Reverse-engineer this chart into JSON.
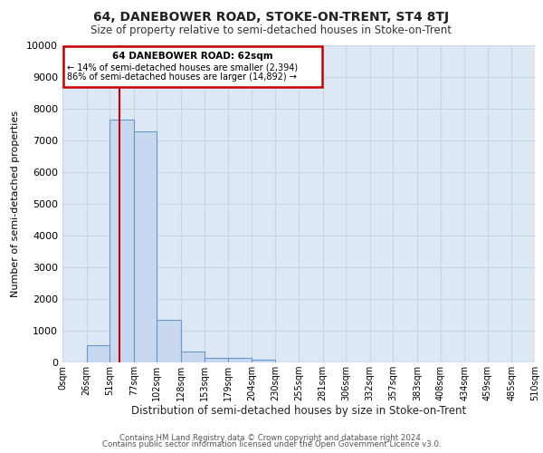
{
  "title1": "64, DANEBOWER ROAD, STOKE-ON-TRENT, ST4 8TJ",
  "title2": "Size of property relative to semi-detached houses in Stoke-on-Trent",
  "xlabel": "Distribution of semi-detached houses by size in Stoke-on-Trent",
  "ylabel": "Number of semi-detached properties",
  "bin_edges": [
    0,
    26,
    51,
    77,
    102,
    128,
    153,
    179,
    204,
    230,
    255,
    281,
    306,
    332,
    357,
    383,
    408,
    434,
    459,
    485,
    510
  ],
  "bar_heights": [
    0,
    550,
    7650,
    7300,
    1350,
    330,
    150,
    130,
    100,
    0,
    0,
    0,
    0,
    0,
    0,
    0,
    0,
    0,
    0,
    0
  ],
  "bar_color": "#c8d8ee",
  "bar_edge_color": "#6699cc",
  "property_size": 62,
  "property_label": "64 DANEBOWER ROAD: 62sqm",
  "pct_smaller": 14,
  "count_smaller": "2,394",
  "pct_larger": 86,
  "count_larger": "14,892",
  "annotation_box_color": "#cc0000",
  "vline_color": "#cc0000",
  "ylim": [
    0,
    10000
  ],
  "yticks": [
    0,
    1000,
    2000,
    3000,
    4000,
    5000,
    6000,
    7000,
    8000,
    9000,
    10000
  ],
  "grid_color": "#c8d4e8",
  "background_color": "#dde8f4",
  "footer1": "Contains HM Land Registry data © Crown copyright and database right 2024.",
  "footer2": "Contains public sector information licensed under the Open Government Licence v3.0."
}
